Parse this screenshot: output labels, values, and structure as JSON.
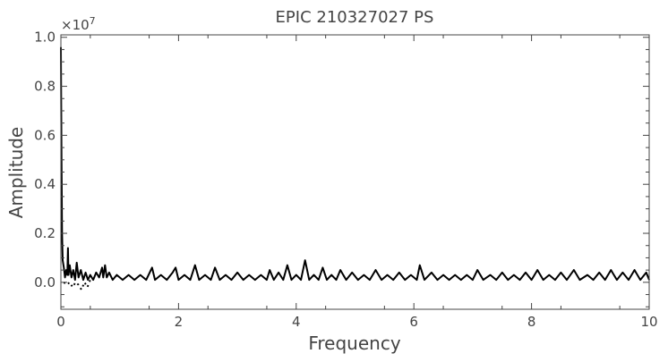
{
  "chart_data": {
    "type": "line",
    "title": "EPIC 210327027 PS",
    "xlabel": "Frequency",
    "ylabel": "Amplitude",
    "y_multiplier_label": "×10",
    "y_multiplier_exponent": "7",
    "xlim": [
      0,
      10
    ],
    "ylim": [
      -0.11,
      1.01
    ],
    "x_ticks": [
      "0",
      "2",
      "4",
      "6",
      "8",
      "10"
    ],
    "y_ticks": [
      "0.0",
      "0.2",
      "0.4",
      "0.6",
      "0.8",
      "1.0"
    ],
    "x_tick_values": [
      0,
      2,
      4,
      6,
      8,
      10
    ],
    "y_tick_values": [
      0.0,
      0.2,
      0.4,
      0.6,
      0.8,
      1.0
    ],
    "grid": false,
    "line_color": "#000000",
    "series": [
      {
        "style": "line",
        "note_points": "main power spectrum trace, amplitude in units of 1e7",
        "points": [
          [
            0.0,
            0.96
          ],
          [
            0.01,
            0.5
          ],
          [
            0.02,
            0.2
          ],
          [
            0.03,
            0.09
          ],
          [
            0.05,
            0.06
          ],
          [
            0.07,
            0.02
          ],
          [
            0.09,
            0.05
          ],
          [
            0.11,
            0.03
          ],
          [
            0.12,
            0.14
          ],
          [
            0.13,
            0.03
          ],
          [
            0.15,
            0.07
          ],
          [
            0.18,
            0.02
          ],
          [
            0.21,
            0.05
          ],
          [
            0.24,
            0.01
          ],
          [
            0.27,
            0.08
          ],
          [
            0.3,
            0.02
          ],
          [
            0.34,
            0.05
          ],
          [
            0.38,
            0.01
          ],
          [
            0.42,
            0.04
          ],
          [
            0.46,
            0.01
          ],
          [
            0.5,
            0.03
          ],
          [
            0.55,
            0.01
          ],
          [
            0.6,
            0.04
          ],
          [
            0.65,
            0.02
          ],
          [
            0.7,
            0.06
          ],
          [
            0.72,
            0.02
          ],
          [
            0.75,
            0.07
          ],
          [
            0.78,
            0.02
          ],
          [
            0.82,
            0.04
          ],
          [
            0.88,
            0.01
          ],
          [
            0.95,
            0.03
          ],
          [
            1.05,
            0.01
          ],
          [
            1.15,
            0.03
          ],
          [
            1.25,
            0.01
          ],
          [
            1.35,
            0.03
          ],
          [
            1.45,
            0.01
          ],
          [
            1.55,
            0.06
          ],
          [
            1.6,
            0.01
          ],
          [
            1.7,
            0.03
          ],
          [
            1.8,
            0.01
          ],
          [
            1.9,
            0.04
          ],
          [
            1.95,
            0.06
          ],
          [
            2.0,
            0.01
          ],
          [
            2.1,
            0.03
          ],
          [
            2.2,
            0.01
          ],
          [
            2.28,
            0.07
          ],
          [
            2.35,
            0.01
          ],
          [
            2.45,
            0.03
          ],
          [
            2.55,
            0.01
          ],
          [
            2.62,
            0.06
          ],
          [
            2.7,
            0.01
          ],
          [
            2.8,
            0.03
          ],
          [
            2.9,
            0.01
          ],
          [
            3.0,
            0.04
          ],
          [
            3.1,
            0.01
          ],
          [
            3.2,
            0.03
          ],
          [
            3.3,
            0.01
          ],
          [
            3.4,
            0.03
          ],
          [
            3.5,
            0.01
          ],
          [
            3.55,
            0.05
          ],
          [
            3.62,
            0.01
          ],
          [
            3.7,
            0.04
          ],
          [
            3.78,
            0.01
          ],
          [
            3.85,
            0.07
          ],
          [
            3.92,
            0.01
          ],
          [
            4.0,
            0.03
          ],
          [
            4.08,
            0.01
          ],
          [
            4.15,
            0.09
          ],
          [
            4.22,
            0.01
          ],
          [
            4.3,
            0.03
          ],
          [
            4.38,
            0.01
          ],
          [
            4.45,
            0.06
          ],
          [
            4.52,
            0.01
          ],
          [
            4.6,
            0.03
          ],
          [
            4.68,
            0.01
          ],
          [
            4.75,
            0.05
          ],
          [
            4.85,
            0.01
          ],
          [
            4.95,
            0.04
          ],
          [
            5.05,
            0.01
          ],
          [
            5.15,
            0.03
          ],
          [
            5.25,
            0.01
          ],
          [
            5.35,
            0.05
          ],
          [
            5.45,
            0.01
          ],
          [
            5.55,
            0.03
          ],
          [
            5.65,
            0.01
          ],
          [
            5.75,
            0.04
          ],
          [
            5.85,
            0.01
          ],
          [
            5.95,
            0.03
          ],
          [
            6.05,
            0.01
          ],
          [
            6.1,
            0.07
          ],
          [
            6.18,
            0.01
          ],
          [
            6.3,
            0.04
          ],
          [
            6.4,
            0.01
          ],
          [
            6.5,
            0.03
          ],
          [
            6.6,
            0.01
          ],
          [
            6.7,
            0.03
          ],
          [
            6.8,
            0.01
          ],
          [
            6.9,
            0.03
          ],
          [
            7.0,
            0.01
          ],
          [
            7.08,
            0.05
          ],
          [
            7.18,
            0.01
          ],
          [
            7.3,
            0.03
          ],
          [
            7.4,
            0.01
          ],
          [
            7.5,
            0.04
          ],
          [
            7.6,
            0.01
          ],
          [
            7.7,
            0.03
          ],
          [
            7.8,
            0.01
          ],
          [
            7.9,
            0.04
          ],
          [
            8.0,
            0.01
          ],
          [
            8.1,
            0.05
          ],
          [
            8.2,
            0.01
          ],
          [
            8.3,
            0.03
          ],
          [
            8.4,
            0.01
          ],
          [
            8.5,
            0.04
          ],
          [
            8.6,
            0.01
          ],
          [
            8.72,
            0.05
          ],
          [
            8.82,
            0.01
          ],
          [
            8.95,
            0.03
          ],
          [
            9.05,
            0.01
          ],
          [
            9.15,
            0.04
          ],
          [
            9.25,
            0.01
          ],
          [
            9.35,
            0.05
          ],
          [
            9.45,
            0.01
          ],
          [
            9.55,
            0.04
          ],
          [
            9.65,
            0.01
          ],
          [
            9.75,
            0.05
          ],
          [
            9.85,
            0.01
          ],
          [
            9.95,
            0.04
          ],
          [
            10.0,
            0.01
          ]
        ]
      },
      {
        "style": "dotted",
        "points": [
          [
            0.05,
            0.0
          ],
          [
            0.1,
            -0.01
          ],
          [
            0.15,
            0.0
          ],
          [
            0.2,
            -0.02
          ],
          [
            0.25,
            0.0
          ],
          [
            0.3,
            -0.01
          ],
          [
            0.35,
            -0.03
          ],
          [
            0.4,
            0.0
          ],
          [
            0.45,
            -0.02
          ],
          [
            0.5,
            0.01
          ]
        ]
      }
    ]
  }
}
